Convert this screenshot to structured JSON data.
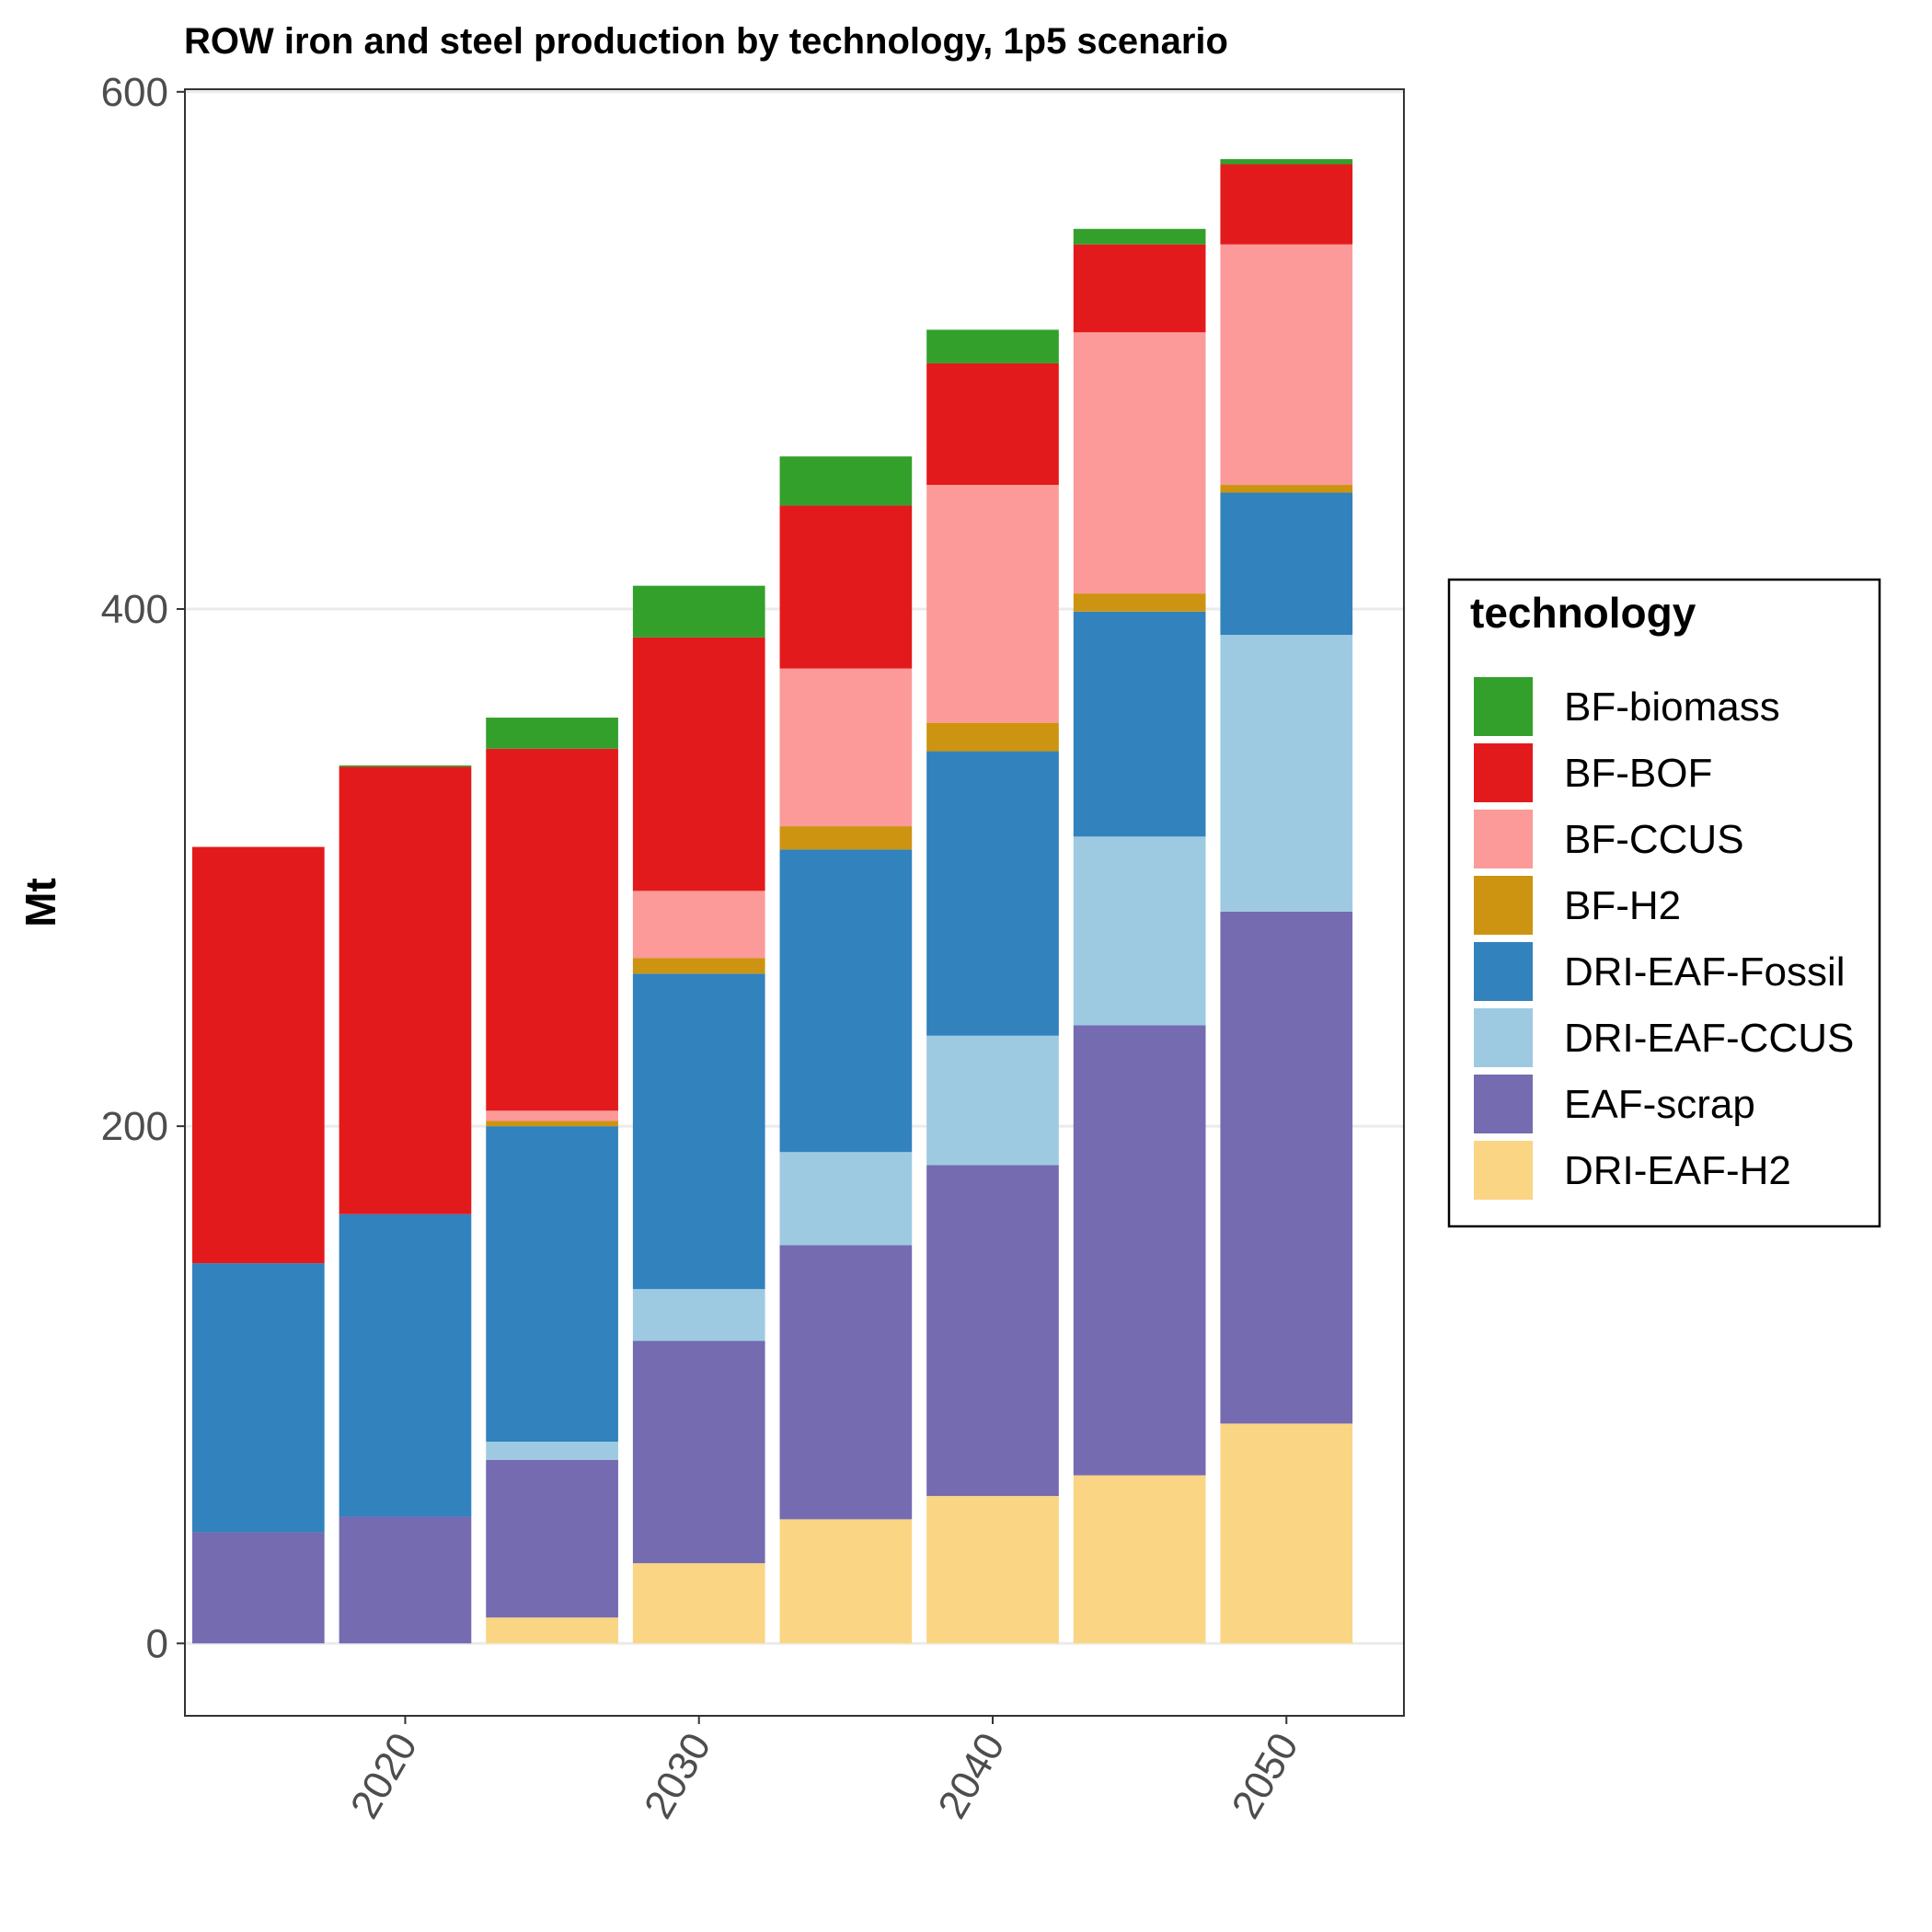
{
  "chart_data": {
    "type": "bar",
    "stacked": true,
    "title": "ROW iron and steel production by technology, 1p5 scenario",
    "xlabel": "",
    "ylabel": "Mt",
    "ylim": [
      -28,
      601
    ],
    "xlim": [
      2012.5,
      2054
    ],
    "x_ticks": [
      2020,
      2030,
      2040,
      2050
    ],
    "y_ticks": [
      0,
      200,
      400,
      600
    ],
    "grid": true,
    "legend_position": "right",
    "legend_title": "technology",
    "x": [
      2015,
      2020,
      2025,
      2030,
      2035,
      2040,
      2045,
      2050
    ],
    "series": [
      {
        "name": "BF-biomass",
        "color": "#33a02c",
        "values": [
          0,
          0.5,
          12,
          20,
          19,
          13,
          6,
          2
        ]
      },
      {
        "name": "BF-BOF",
        "color": "#e31a1c",
        "values": [
          161,
          173,
          140,
          98,
          63,
          47,
          34,
          31
        ]
      },
      {
        "name": "BF-CCUS",
        "color": "#fb9a99",
        "values": [
          0,
          0,
          4,
          26,
          61,
          92,
          101,
          93
        ]
      },
      {
        "name": "BF-H2",
        "color": "#cc9410",
        "values": [
          0,
          0,
          2,
          6,
          9,
          11,
          7,
          3
        ]
      },
      {
        "name": "DRI-EAF-Fossil",
        "color": "#3182bd",
        "values": [
          104,
          117,
          122,
          122,
          117,
          110,
          87,
          55
        ]
      },
      {
        "name": "DRI-EAF-CCUS",
        "color": "#9ecae1",
        "values": [
          0,
          0,
          7,
          20,
          36,
          50,
          73,
          107
        ]
      },
      {
        "name": "EAF-scrap",
        "color": "#756bb1",
        "values": [
          43,
          49,
          61,
          86,
          106,
          128,
          174,
          198
        ]
      },
      {
        "name": "DRI-EAF-H2",
        "color": "#fad583",
        "values": [
          0,
          0,
          10,
          31,
          48,
          57,
          65,
          85
        ]
      }
    ],
    "legend_order": [
      "BF-biomass",
      "BF-BOF",
      "BF-CCUS",
      "BF-H2",
      "DRI-EAF-Fossil",
      "DRI-EAF-CCUS",
      "EAF-scrap",
      "DRI-EAF-H2"
    ]
  }
}
